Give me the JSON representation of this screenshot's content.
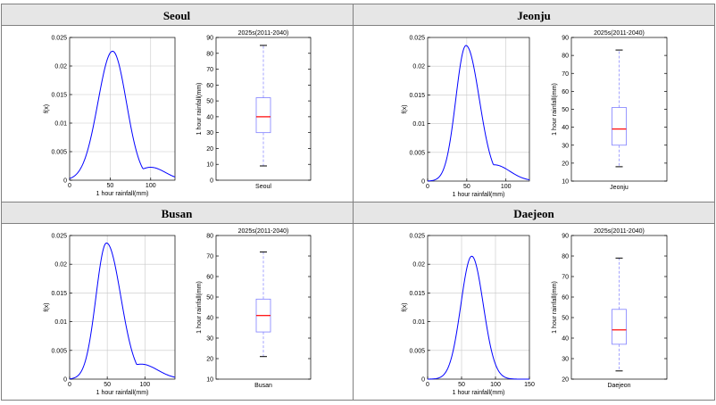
{
  "panels": [
    {
      "city": "Seoul",
      "density": {
        "xlabel": "1 hour rainfall(mm)",
        "ylabel": "f(x)",
        "xlim": [
          0,
          130
        ],
        "ylim": [
          0,
          0.025
        ],
        "xticks": [
          0,
          50,
          100
        ],
        "yticks": [
          0,
          0.005,
          0.01,
          0.015,
          0.02,
          0.025
        ],
        "ytick_labels": [
          "0",
          "0.005",
          "0.01",
          "0.015",
          "0.02",
          "0.025"
        ],
        "peak": 53,
        "peak_value": 0.0226,
        "sd_left": 18,
        "sd_right": 17,
        "tail_weight": 0.1,
        "tail_center": 100,
        "tail_sd": 18
      },
      "box": {
        "title": "2025s(2011-2040)",
        "ylabel": "1 hour rainfall(mm)",
        "xlabel": "Seoul",
        "ylim": [
          0,
          90
        ],
        "yticks": [
          0,
          10,
          20,
          30,
          40,
          50,
          60,
          70,
          80,
          90
        ],
        "whisker_low": 9,
        "q1": 30,
        "median": 40,
        "q3": 52,
        "whisker_high": 85
      }
    },
    {
      "city": "Jeonju",
      "density": {
        "xlabel": "1 hour rainfall(mm)",
        "ylabel": "f(x)",
        "xlim": [
          0,
          130
        ],
        "ylim": [
          0,
          0.025
        ],
        "xticks": [
          0,
          50,
          100
        ],
        "yticks": [
          0,
          0.005,
          0.01,
          0.015,
          0.02,
          0.025
        ],
        "ytick_labels": [
          "0",
          "0.005",
          "0.01",
          "0.015",
          "0.02",
          "0.025"
        ],
        "peak": 49,
        "peak_value": 0.0236,
        "sd_left": 13,
        "sd_right": 17,
        "tail_weight": 0.12,
        "tail_center": 85,
        "tail_sd": 20
      },
      "box": {
        "title": "2025s(2011-2040)",
        "ylabel": "1 hour rainfall(mm)",
        "xlabel": "Jeonju",
        "ylim": [
          10,
          90
        ],
        "yticks": [
          10,
          20,
          30,
          40,
          50,
          60,
          70,
          80,
          90
        ],
        "whisker_low": 18,
        "q1": 30,
        "median": 39,
        "q3": 51,
        "whisker_high": 83
      }
    },
    {
      "city": "Busan",
      "density": {
        "xlabel": "1 hour rainfall(mm)",
        "ylabel": "f(x)",
        "xlim": [
          0,
          140
        ],
        "ylim": [
          0,
          0.025
        ],
        "xticks": [
          0,
          50,
          100
        ],
        "yticks": [
          0,
          0.005,
          0.01,
          0.015,
          0.02,
          0.025
        ],
        "ytick_labels": [
          "0",
          "0.005",
          "0.01",
          "0.015",
          "0.02",
          "0.025"
        ],
        "peak": 49,
        "peak_value": 0.0237,
        "sd_left": 14,
        "sd_right": 19,
        "tail_weight": 0.11,
        "tail_center": 95,
        "tail_sd": 22
      },
      "box": {
        "title": "2025s(2011-2040)",
        "ylabel": "1 hour rainfall(mm)",
        "xlabel": "Busan",
        "ylim": [
          10,
          80
        ],
        "yticks": [
          10,
          20,
          30,
          40,
          50,
          60,
          70,
          80
        ],
        "whisker_low": 21,
        "q1": 33,
        "median": 41,
        "q3": 49,
        "whisker_high": 72
      }
    },
    {
      "city": "Daejeon",
      "density": {
        "xlabel": "1 hour rainfall(mm)",
        "ylabel": "f(x)",
        "xlim": [
          0,
          150
        ],
        "ylim": [
          0,
          0.025
        ],
        "xticks": [
          0,
          50,
          100,
          150
        ],
        "yticks": [
          0,
          0.005,
          0.01,
          0.015,
          0.02,
          0.025
        ],
        "ytick_labels": [
          "0",
          "0.005",
          "0.01",
          "0.015",
          "0.02",
          "0.025"
        ],
        "peak": 65,
        "peak_value": 0.0214,
        "sd_left": 16,
        "sd_right": 17,
        "tail_weight": 0.0,
        "tail_center": 100,
        "tail_sd": 20
      },
      "box": {
        "title": "2025s(2011-2040)",
        "ylabel": "1 hour rainfall(mm)",
        "xlabel": "Daejeon",
        "ylim": [
          20,
          90
        ],
        "yticks": [
          20,
          30,
          40,
          50,
          60,
          70,
          80,
          90
        ],
        "whisker_low": 24,
        "q1": 37,
        "median": 44,
        "q3": 54,
        "whisker_high": 79
      }
    }
  ],
  "colors": {
    "curve": "#0000ff",
    "median": "#ff0000",
    "box": "#7f7fff",
    "whisker_dash": "#7f7fff",
    "whisker_cap": "#000000",
    "grid": "#c8c8c8",
    "header_bg": "#e6e6e6",
    "border": "#808080"
  },
  "chart_data": [
    {
      "type": "line",
      "city": "Seoul",
      "xlabel": "1 hour rainfall(mm)",
      "ylabel": "f(x)",
      "xlim": [
        0,
        130
      ],
      "ylim": [
        0,
        0.025
      ],
      "mode": 53,
      "mode_density": 0.0226
    },
    {
      "type": "box",
      "city": "Seoul",
      "title": "2025s(2011-2040)",
      "ylabel": "1 hour rainfall(mm)",
      "ylim": [
        0,
        90
      ],
      "min": 9,
      "q1": 30,
      "median": 40,
      "q3": 52,
      "max": 85
    },
    {
      "type": "line",
      "city": "Jeonju",
      "xlabel": "1 hour rainfall(mm)",
      "ylabel": "f(x)",
      "xlim": [
        0,
        130
      ],
      "ylim": [
        0,
        0.025
      ],
      "mode": 49,
      "mode_density": 0.0236
    },
    {
      "type": "box",
      "city": "Jeonju",
      "title": "2025s(2011-2040)",
      "ylabel": "1 hour rainfall(mm)",
      "ylim": [
        10,
        90
      ],
      "min": 18,
      "q1": 30,
      "median": 39,
      "q3": 51,
      "max": 83
    },
    {
      "type": "line",
      "city": "Busan",
      "xlabel": "1 hour rainfall(mm)",
      "ylabel": "f(x)",
      "xlim": [
        0,
        140
      ],
      "ylim": [
        0,
        0.025
      ],
      "mode": 49,
      "mode_density": 0.0237
    },
    {
      "type": "box",
      "city": "Busan",
      "title": "2025s(2011-2040)",
      "ylabel": "1 hour rainfall(mm)",
      "ylim": [
        10,
        80
      ],
      "min": 21,
      "q1": 33,
      "median": 41,
      "q3": 49,
      "max": 72
    },
    {
      "type": "line",
      "city": "Daejeon",
      "xlabel": "1 hour rainfall(mm)",
      "ylabel": "f(x)",
      "xlim": [
        0,
        150
      ],
      "ylim": [
        0,
        0.025
      ],
      "mode": 65,
      "mode_density": 0.0214
    },
    {
      "type": "box",
      "city": "Daejeon",
      "title": "2025s(2011-2040)",
      "ylabel": "1 hour rainfall(mm)",
      "ylim": [
        20,
        90
      ],
      "min": 24,
      "q1": 37,
      "median": 44,
      "q3": 54,
      "max": 79
    }
  ]
}
